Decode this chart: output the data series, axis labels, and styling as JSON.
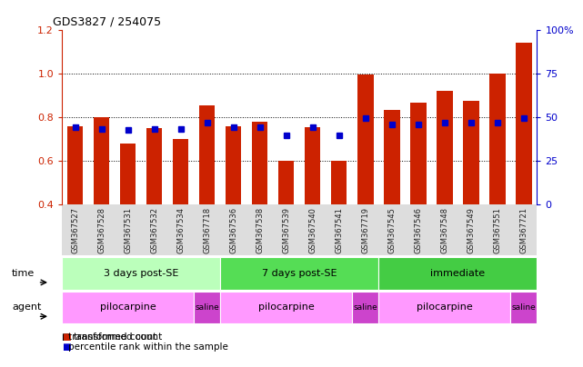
{
  "title": "GDS3827 / 254075",
  "samples": [
    "GSM367527",
    "GSM367528",
    "GSM367531",
    "GSM367532",
    "GSM367534",
    "GSM367718",
    "GSM367536",
    "GSM367538",
    "GSM367539",
    "GSM367540",
    "GSM367541",
    "GSM367719",
    "GSM367545",
    "GSM367546",
    "GSM367548",
    "GSM367549",
    "GSM367551",
    "GSM367721"
  ],
  "red_values": [
    0.76,
    0.8,
    0.68,
    0.75,
    0.7,
    0.855,
    0.76,
    0.78,
    0.6,
    0.755,
    0.6,
    0.995,
    0.835,
    0.865,
    0.92,
    0.875,
    1.0,
    1.14
  ],
  "blue_values": [
    0.755,
    0.745,
    0.74,
    0.745,
    0.745,
    0.775,
    0.755,
    0.755,
    0.715,
    0.755,
    0.715,
    0.795,
    0.765,
    0.765,
    0.775,
    0.775,
    0.775,
    0.795
  ],
  "ymin": 0.4,
  "ymax": 1.2,
  "yticks_left": [
    0.4,
    0.6,
    0.8,
    1.0,
    1.2
  ],
  "grid_yticks": [
    0.6,
    0.8,
    1.0
  ],
  "bar_color": "#cc2200",
  "dot_color": "#0000cc",
  "bar_width": 0.6,
  "time_groups": [
    {
      "label": "3 days post-SE",
      "start": 0,
      "end": 5,
      "color": "#bbffbb"
    },
    {
      "label": "7 days post-SE",
      "start": 6,
      "end": 11,
      "color": "#55dd55"
    },
    {
      "label": "immediate",
      "start": 12,
      "end": 17,
      "color": "#44cc44"
    }
  ],
  "agent_groups": [
    {
      "label": "pilocarpine",
      "start": 0,
      "end": 4,
      "color": "#ff99ff"
    },
    {
      "label": "saline",
      "start": 5,
      "end": 5,
      "color": "#cc44cc"
    },
    {
      "label": "pilocarpine",
      "start": 6,
      "end": 10,
      "color": "#ff99ff"
    },
    {
      "label": "saline",
      "start": 11,
      "end": 11,
      "color": "#cc44cc"
    },
    {
      "label": "pilocarpine",
      "start": 12,
      "end": 16,
      "color": "#ff99ff"
    },
    {
      "label": "saline",
      "start": 17,
      "end": 17,
      "color": "#cc44cc"
    }
  ],
  "tick_label_color": "#222222",
  "left_axis_color": "#cc2200",
  "right_axis_color": "#0000cc",
  "bg_color": "#ffffff",
  "n_samples": 18,
  "legend_red": "transformed count",
  "legend_blue": "percentile rank within the sample",
  "right_tick_labels": [
    "0",
    "25",
    "50",
    "75",
    "100%"
  ]
}
